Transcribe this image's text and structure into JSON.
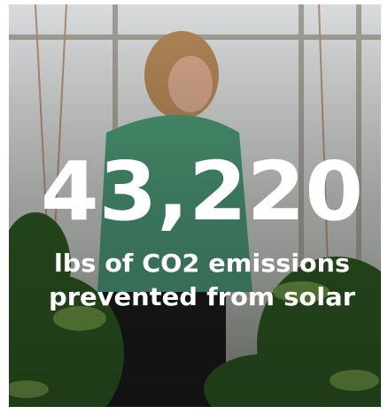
{
  "stat": {
    "value": "43,220",
    "caption": [
      "lbs of CO2 emissions",
      "prevented from solar"
    ]
  }
}
